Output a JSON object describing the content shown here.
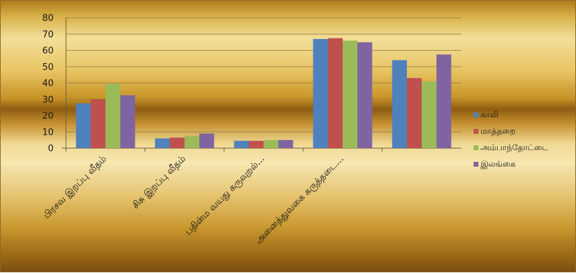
{
  "chart_data": {
    "type": "bar",
    "categories": [
      "பிரசவ இறப்பு வீதம்",
      "சிசு இறப்பு வீதம்",
      "பதின்ம வயது கருவுறல்...",
      "அனைத்துவகை கருத்தடை...",
      ""
    ],
    "series": [
      {
        "name": "காலி",
        "color": "#4f81bd",
        "values": [
          27.5,
          6,
          4.5,
          67,
          54
        ]
      },
      {
        "name": "மாத்தறை",
        "color": "#c0504d",
        "values": [
          30,
          6.5,
          4.5,
          67.5,
          43
        ]
      },
      {
        "name": "அம்பாந்தோட்டை",
        "color": "#9bbb59",
        "values": [
          39.5,
          7.5,
          5,
          66,
          41
        ]
      },
      {
        "name": "இலங்கை",
        "color": "#8064a2",
        "values": [
          32.5,
          9,
          5,
          65,
          57.5
        ]
      }
    ],
    "y_ticks": [
      "0",
      "10",
      "20",
      "30",
      "40",
      "50",
      "60",
      "70",
      "80"
    ],
    "ylim": [
      0,
      80
    ],
    "grid": true,
    "legend_position": "right"
  }
}
